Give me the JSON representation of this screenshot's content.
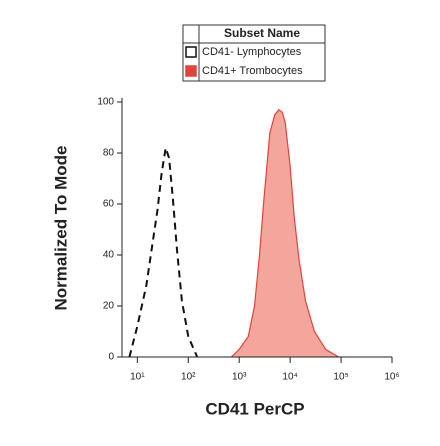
{
  "chart_data": {
    "type": "histogram-overlay",
    "xlabel": "CD41 PerCP",
    "ylabel": "Normalized To Mode",
    "xscale": "log",
    "xlim": [
      5,
      1000000
    ],
    "ylim": [
      0,
      100
    ],
    "xticks": [
      {
        "value": 10,
        "label": "10¹"
      },
      {
        "value": 100,
        "label": "10²"
      },
      {
        "value": 1000,
        "label": "10³"
      },
      {
        "value": 10000,
        "label": "10⁴"
      },
      {
        "value": 100000,
        "label": "10⁵"
      },
      {
        "value": 1000000,
        "label": "10⁶"
      }
    ],
    "yticks": [
      0,
      20,
      40,
      60,
      80,
      100
    ],
    "legend_title": "Subset Name",
    "series": [
      {
        "name": "CD41- Lymphocytes",
        "color": "#111111",
        "dashed": true,
        "filled": false,
        "x": [
          7,
          10,
          15,
          20,
          25,
          30,
          36,
          42,
          50,
          60,
          75,
          100,
          150
        ],
        "values": [
          0,
          12,
          28,
          45,
          58,
          72,
          82,
          78,
          62,
          42,
          22,
          8,
          0
        ]
      },
      {
        "name": "CD41+ Trombocytes",
        "color": "#e0443a",
        "fill_color": "#f4a59c",
        "dashed": false,
        "filled": true,
        "x": [
          700,
          1000,
          1500,
          2000,
          2500,
          3000,
          3500,
          4000,
          5000,
          6000,
          7000,
          8000,
          10000,
          12000,
          15000,
          20000,
          30000,
          50000,
          90000
        ],
        "values": [
          0,
          3,
          8,
          20,
          40,
          60,
          75,
          88,
          95,
          97,
          96,
          92,
          75,
          55,
          38,
          22,
          10,
          3,
          0
        ]
      }
    ]
  }
}
